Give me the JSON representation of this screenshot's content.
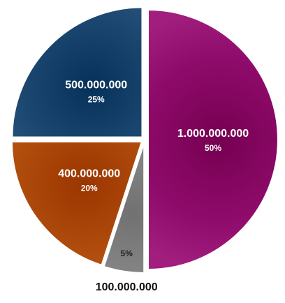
{
  "chart_data": {
    "type": "pie",
    "slices": [
      {
        "value": 1000000000,
        "value_label": "1.000.000.000",
        "percent_label": "50%",
        "color": "#8e0a6a",
        "label_position": "inside"
      },
      {
        "value": 100000000,
        "value_label": "100.000.000",
        "percent_label": "5%",
        "color": "#8a8a8a",
        "label_position": "outside-bottom"
      },
      {
        "value": 400000000,
        "value_label": "400.000.000",
        "percent_label": "20%",
        "color": "#b34f0e",
        "label_position": "inside"
      },
      {
        "value": 500000000,
        "value_label": "500.000.000",
        "percent_label": "25%",
        "color": "#1f4a73",
        "label_position": "inside"
      }
    ],
    "start_angle_deg": 0,
    "direction": "clockwise",
    "exploded": true,
    "legend": "none"
  }
}
